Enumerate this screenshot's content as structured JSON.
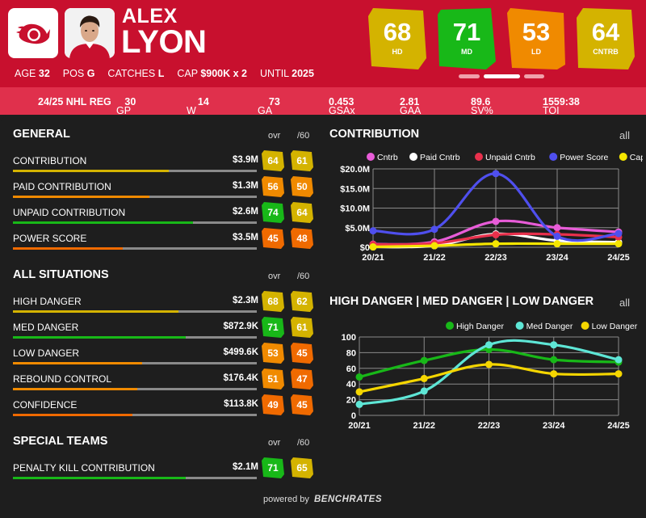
{
  "player": {
    "first_name": "ALEX",
    "last_name": "LYON",
    "bio": [
      {
        "label": "AGE",
        "value": "32"
      },
      {
        "label": "POS",
        "value": "G"
      },
      {
        "label": "CATCHES",
        "value": "L"
      },
      {
        "label": "CAP",
        "value": "$900K x 2"
      },
      {
        "label": "UNTIL",
        "value": "2025"
      }
    ]
  },
  "ratings": [
    {
      "value": "68",
      "label": "HD",
      "color": "#d4b300"
    },
    {
      "value": "71",
      "label": "MD",
      "color": "#18b818"
    },
    {
      "value": "53",
      "label": "LD",
      "color": "#f08a00"
    },
    {
      "value": "64",
      "label": "CNTRB",
      "color": "#d4b300"
    }
  ],
  "season_stats": {
    "season": "24/25 NHL REG",
    "items": [
      {
        "label": "GP",
        "value": "30"
      },
      {
        "label": "W",
        "value": "14"
      },
      {
        "label": "GA",
        "value": "73"
      },
      {
        "label": "GSAx",
        "value": "0.453"
      },
      {
        "label": "GAA",
        "value": "2.81"
      },
      {
        "label": "SV%",
        "value": "89.6"
      },
      {
        "label": "TOI",
        "value": "1559:38"
      }
    ]
  },
  "colors": {
    "yellow": "#d4b300",
    "green": "#18b818",
    "orange": "#f08a00",
    "deep_orange": "#f06a00"
  },
  "sections": {
    "ovr_label": "ovr",
    "per60_label": "/60",
    "general": {
      "title": "GENERAL",
      "rows": [
        {
          "name": "CONTRIBUTION",
          "value": "$3.9M",
          "ovr": "64",
          "per60": "61",
          "level": 0.64,
          "bar_color": "#d4b300",
          "ovr_color": "#d4b300",
          "p60_color": "#d4b300"
        },
        {
          "name": "PAID CONTRIBUTION",
          "value": "$1.3M",
          "ovr": "56",
          "per60": "50",
          "level": 0.56,
          "bar_color": "#f08a00",
          "ovr_color": "#f08a00",
          "p60_color": "#f08a00"
        },
        {
          "name": "UNPAID CONTRIBUTION",
          "value": "$2.6M",
          "ovr": "74",
          "per60": "64",
          "level": 0.74,
          "bar_color": "#18b818",
          "ovr_color": "#18b818",
          "p60_color": "#d4b300"
        },
        {
          "name": "POWER SCORE",
          "value": "$3.5M",
          "ovr": "45",
          "per60": "48",
          "level": 0.45,
          "bar_color": "#f06a00",
          "ovr_color": "#f06a00",
          "p60_color": "#f06a00"
        }
      ]
    },
    "all_situations": {
      "title": "ALL SITUATIONS",
      "rows": [
        {
          "name": "HIGH DANGER",
          "value": "$2.3M",
          "ovr": "68",
          "per60": "62",
          "level": 0.68,
          "bar_color": "#d4b300",
          "ovr_color": "#d4b300",
          "p60_color": "#d4b300"
        },
        {
          "name": "MED DANGER",
          "value": "$872.9K",
          "ovr": "71",
          "per60": "61",
          "level": 0.71,
          "bar_color": "#18b818",
          "ovr_color": "#18b818",
          "p60_color": "#d4b300"
        },
        {
          "name": "LOW DANGER",
          "value": "$499.6K",
          "ovr": "53",
          "per60": "45",
          "level": 0.53,
          "bar_color": "#f08a00",
          "ovr_color": "#f08a00",
          "p60_color": "#f06a00"
        },
        {
          "name": "REBOUND CONTROL",
          "value": "$176.4K",
          "ovr": "51",
          "per60": "47",
          "level": 0.51,
          "bar_color": "#f08a00",
          "ovr_color": "#f08a00",
          "p60_color": "#f06a00"
        },
        {
          "name": "CONFIDENCE",
          "value": "$113.8K",
          "ovr": "49",
          "per60": "45",
          "level": 0.49,
          "bar_color": "#f06a00",
          "ovr_color": "#f06a00",
          "p60_color": "#f06a00"
        }
      ]
    },
    "special_teams": {
      "title": "SPECIAL TEAMS",
      "rows": [
        {
          "name": "PENALTY KILL CONTRIBUTION",
          "value": "$2.1M",
          "ovr": "71",
          "per60": "65",
          "level": 0.71,
          "bar_color": "#18b818",
          "ovr_color": "#18b818",
          "p60_color": "#d4b300"
        }
      ]
    }
  },
  "chart_data": [
    {
      "type": "line",
      "title": "CONTRIBUTION",
      "link": "all",
      "categories": [
        "20/21",
        "21/22",
        "22/23",
        "23/24",
        "24/25"
      ],
      "ylim": [
        0,
        20
      ],
      "yticks": [
        "$0",
        "$5.0M",
        "$10.0M",
        "$15.0M",
        "$20.0M"
      ],
      "grid": true,
      "legend_position": "top",
      "series": [
        {
          "name": "Cntrb",
          "color": "#e85cd8",
          "values": [
            0.8,
            1.4,
            6.6,
            5.0,
            3.9
          ]
        },
        {
          "name": "Paid Cntrb",
          "color": "#ffffff",
          "values": [
            0.1,
            0.4,
            3.4,
            1.7,
            1.3
          ]
        },
        {
          "name": "Unpaid Cntrb",
          "color": "#e8304c",
          "values": [
            0.7,
            1.0,
            3.2,
            3.3,
            2.6
          ]
        },
        {
          "name": "Power Score",
          "color": "#4f4fee",
          "values": [
            4.2,
            4.6,
            18.8,
            2.8,
            3.5
          ]
        },
        {
          "name": "Cap Hit",
          "color": "#f5e600",
          "values": [
            0.1,
            0.4,
            0.9,
            0.9,
            0.9
          ]
        }
      ]
    },
    {
      "type": "line",
      "title": "HIGH DANGER | MED DANGER | LOW DANGER",
      "link": "all",
      "categories": [
        "20/21",
        "21/22",
        "22/23",
        "23/24",
        "24/25"
      ],
      "ylim": [
        0,
        100
      ],
      "yticks": [
        "0",
        "20",
        "40",
        "60",
        "80",
        "100"
      ],
      "grid": true,
      "legend_position": "top-right",
      "series": [
        {
          "name": "High Danger",
          "color": "#18b818",
          "values": [
            49,
            70,
            84,
            71,
            68
          ]
        },
        {
          "name": "Med Danger",
          "color": "#5ee6d6",
          "values": [
            14,
            31,
            90,
            90,
            71
          ]
        },
        {
          "name": "Low Danger",
          "color": "#f5d600",
          "values": [
            30,
            47,
            65,
            53,
            53
          ]
        }
      ]
    }
  ],
  "footer": {
    "powered": "powered by",
    "brand": "BENCHRATES"
  }
}
